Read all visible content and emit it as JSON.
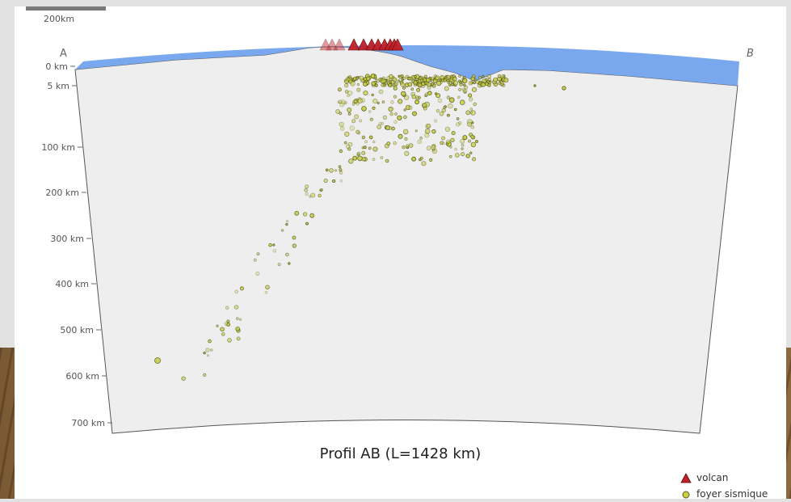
{
  "scale": {
    "label": "200km"
  },
  "endpoints": {
    "start": "A",
    "end": "B"
  },
  "depth_axis": {
    "ticks": [
      {
        "label": "0 km",
        "depth": 0
      },
      {
        "label": "5 km",
        "depth": 5
      },
      {
        "label": "100 km",
        "depth": 100
      },
      {
        "label": "200 km",
        "depth": 200
      },
      {
        "label": "300 km",
        "depth": 300
      },
      {
        "label": "400 km",
        "depth": 400
      },
      {
        "label": "500 km",
        "depth": 500
      },
      {
        "label": "600 km",
        "depth": 600
      },
      {
        "label": "700 km",
        "depth": 700
      }
    ]
  },
  "caption": "Profil AB (L=1428 km)",
  "legend": {
    "volcano_label": "volcan",
    "quake_label": "foyer sismique"
  },
  "colors": {
    "ocean": "#7aa8ef",
    "section": "#eeeeee",
    "volcano": "#c0202a",
    "quake": "#c8cf4a",
    "quake_edge": "#5a5c1a"
  },
  "icons": {
    "volcano": "triangle-icon",
    "quake": "circle-icon"
  }
}
